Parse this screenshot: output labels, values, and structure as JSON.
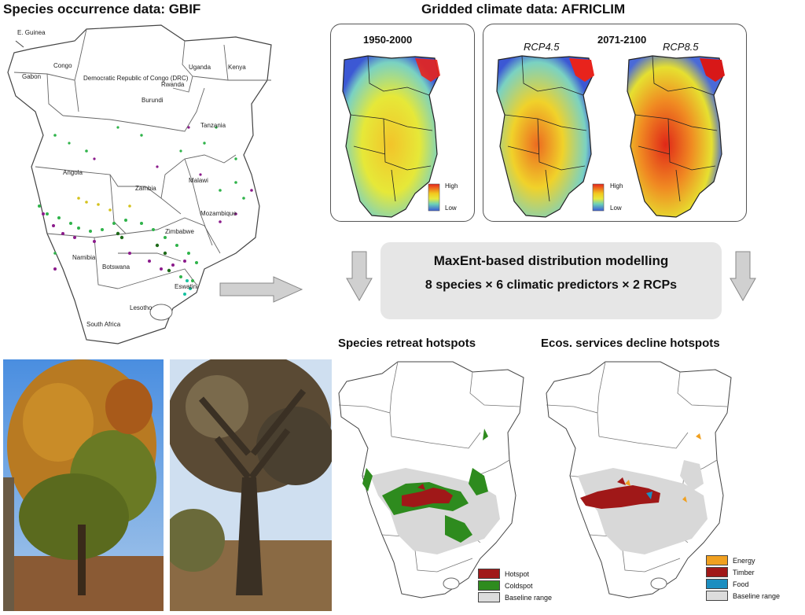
{
  "gbif": {
    "title": "Species occurrence data: GBIF",
    "countries": {
      "e_guinea": "E. Guinea",
      "gabon": "Gabon",
      "congo": "Congo",
      "drc": "Democratic Republic of Congo (DRC)",
      "uganda": "Uganda",
      "kenya": "Kenya",
      "rwanda": "Rwanda",
      "burundi": "Burundi",
      "tanzania": "Tanzania",
      "angola": "Angola",
      "zambia": "Zambia",
      "malawi": "Malawi",
      "mozambique": "Mozambique",
      "zimbabwe": "Zimbabwe",
      "namibia": "Namibia",
      "botswana": "Botswana",
      "eswatini": "Eswatini",
      "lesotho": "Lesotho",
      "south_africa": "South Africa"
    }
  },
  "africlim": {
    "title": "Gridded climate data: AFRICLIM",
    "baseline_period": "1950-2000",
    "future_period": "2071-2100",
    "rcp45": "RCP4.5",
    "rcp85": "RCP8.5",
    "legend_high": "High",
    "legend_low": "Low"
  },
  "process": {
    "title": "MaxEnt-based distribution modelling",
    "subtitle": "8 species × 6 climatic predictors × 2 RCPs"
  },
  "retreat": {
    "title": "Species retreat hotspots",
    "legend": [
      {
        "label": "Hotspot",
        "color": "#a01818"
      },
      {
        "label": "Coldspot",
        "color": "#2e8b1e"
      },
      {
        "label": "Baseline range",
        "color": "#dcdcdc"
      }
    ]
  },
  "ecos": {
    "title": "Ecos. services decline hotspots",
    "legend": [
      {
        "label": "Energy",
        "color": "#f0a020"
      },
      {
        "label": "Timber",
        "color": "#a01818"
      },
      {
        "label": "Food",
        "color": "#1c8ec0"
      },
      {
        "label": "Baseline range",
        "color": "#dcdcdc"
      }
    ]
  }
}
